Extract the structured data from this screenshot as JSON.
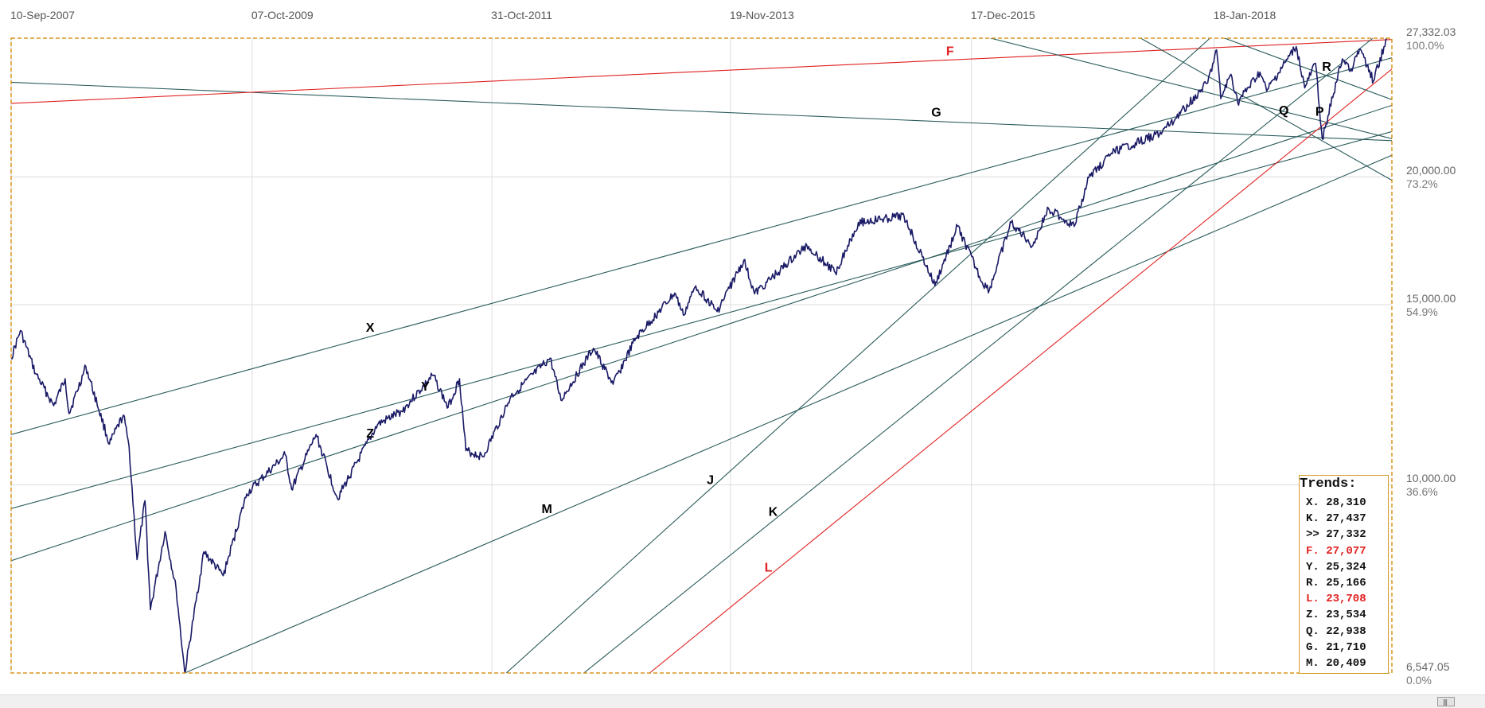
{
  "chart_data": {
    "type": "line",
    "title": "",
    "y_scale": "log",
    "ylim": [
      6547.05,
      27332.03
    ],
    "x_ticks": [
      "10-Sep-2007",
      "07-Oct-2009",
      "31-Oct-2011",
      "19-Nov-2013",
      "17-Dec-2015",
      "18-Jan-2018"
    ],
    "y_ticks": [
      {
        "value": 27332.03,
        "price_label": "27,332.03",
        "pct_label": "100.0%"
      },
      {
        "value": 20000,
        "price_label": "20,000.00",
        "pct_label": "73.2%"
      },
      {
        "value": 15000,
        "price_label": "15,000.00",
        "pct_label": "54.9%"
      },
      {
        "value": 10000,
        "price_label": "10,000.00",
        "pct_label": "36.6%"
      },
      {
        "value": 6547.05,
        "price_label": "6,547.05",
        "pct_label": "0.0%"
      }
    ],
    "grid": true,
    "series": [
      {
        "color": "#1a1a66",
        "points": [
          [
            "2007-09-10",
            13300
          ],
          [
            "2007-10-09",
            14150
          ],
          [
            "2007-11-26",
            12850
          ],
          [
            "2008-01-22",
            11950
          ],
          [
            "2008-02-27",
            12700
          ],
          [
            "2008-03-10",
            11740
          ],
          [
            "2008-05-02",
            13050
          ],
          [
            "2008-07-15",
            10960
          ],
          [
            "2008-08-28",
            11700
          ],
          [
            "2008-09-15",
            10900
          ],
          [
            "2008-10-10",
            8450
          ],
          [
            "2008-11-04",
            9650
          ],
          [
            "2008-11-21",
            7550
          ],
          [
            "2009-01-06",
            9000
          ],
          [
            "2009-02-10",
            7900
          ],
          [
            "2009-03-09",
            6547
          ],
          [
            "2009-05-08",
            8600
          ],
          [
            "2009-07-08",
            8150
          ],
          [
            "2009-09-20",
            9800
          ],
          [
            "2010-01-19",
            10700
          ],
          [
            "2010-02-08",
            9900
          ],
          [
            "2010-04-26",
            11200
          ],
          [
            "2010-07-02",
            9700
          ],
          [
            "2010-11-05",
            11450
          ],
          [
            "2011-01-20",
            11800
          ],
          [
            "2011-04-29",
            12800
          ],
          [
            "2011-06-15",
            11900
          ],
          [
            "2011-07-21",
            12700
          ],
          [
            "2011-08-10",
            10800
          ],
          [
            "2011-10-03",
            10650
          ],
          [
            "2011-12-30",
            12200
          ],
          [
            "2012-05-01",
            13300
          ],
          [
            "2012-06-04",
            12100
          ],
          [
            "2012-09-14",
            13600
          ],
          [
            "2012-11-15",
            12540
          ],
          [
            "2013-01-25",
            13900
          ],
          [
            "2013-05-28",
            15400
          ],
          [
            "2013-06-24",
            14650
          ],
          [
            "2013-08-02",
            15650
          ],
          [
            "2013-10-08",
            14770
          ],
          [
            "2013-12-31",
            16580
          ],
          [
            "2014-02-03",
            15370
          ],
          [
            "2014-07-17",
            17150
          ],
          [
            "2014-10-15",
            16120
          ],
          [
            "2014-12-26",
            18050
          ],
          [
            "2015-05-19",
            18310
          ],
          [
            "2015-08-24",
            15660
          ],
          [
            "2015-11-03",
            17900
          ],
          [
            "2016-01-20",
            15770
          ],
          [
            "2016-02-11",
            15500
          ],
          [
            "2016-04-20",
            18050
          ],
          [
            "2016-06-27",
            17140
          ],
          [
            "2016-08-15",
            18640
          ],
          [
            "2016-11-04",
            17890
          ],
          [
            "2016-12-20",
            19970
          ],
          [
            "2017-03-01",
            21100
          ],
          [
            "2017-08-08",
            22120
          ],
          [
            "2017-12-29",
            24720
          ],
          [
            "2018-01-26",
            26617
          ],
          [
            "2018-02-08",
            23860
          ],
          [
            "2018-03-12",
            25200
          ],
          [
            "2018-04-02",
            23640
          ],
          [
            "2018-06-11",
            25320
          ],
          [
            "2018-07-02",
            24270
          ],
          [
            "2018-10-03",
            26828
          ],
          [
            "2018-10-30",
            24440
          ],
          [
            "2018-12-03",
            25830
          ],
          [
            "2018-12-24",
            21790
          ],
          [
            "2019-02-25",
            26090
          ],
          [
            "2019-03-25",
            25520
          ],
          [
            "2019-04-23",
            26656
          ],
          [
            "2019-06-03",
            24815
          ],
          [
            "2019-07-15",
            27332
          ]
        ]
      }
    ],
    "trendlines": [
      {
        "label": "X",
        "color": "#2a5a5a",
        "label_color": "#000000",
        "x1": "2007-09-10",
        "y1": 11200,
        "x2": "2019-07-31",
        "y2": 26150
      },
      {
        "label": "Y",
        "color": "#2a5a5a",
        "label_color": "#000000",
        "x1": "2007-09-10",
        "y1": 9480,
        "x2": "2019-07-31",
        "y2": 22150
      },
      {
        "label": "Z",
        "color": "#2a5a5a",
        "label_color": "#000000",
        "x1": "2007-09-10",
        "y1": 8430,
        "x2": "2019-07-31",
        "y2": 23500
      },
      {
        "label": "M",
        "color": "#2a5a5a",
        "label_color": "#000000",
        "x1": "2009-03-09",
        "y1": 6547,
        "x2": "2019-07-31",
        "y2": 21000
      },
      {
        "label": "G",
        "color": "#2a5a5a",
        "label_color": "#000000",
        "x1": "2007-09-10",
        "y1": 24750,
        "x2": "2019-07-31",
        "y2": 21700
      },
      {
        "label": "F",
        "color": "#e02020",
        "label_color": "#e02020",
        "x1": "2007-09-10",
        "y1": 23600,
        "x2": "2019-07-31",
        "y2": 27250
      },
      {
        "label": "J",
        "color": "#2a5a5a",
        "label_color": "#000000",
        "x1": "2011-12-15",
        "y1": 6547,
        "x2": "2018-01-05",
        "y2": 27332
      },
      {
        "label": "K",
        "color": "#2a5a5a",
        "label_color": "#000000",
        "x1": "2012-08-15",
        "y1": 6547,
        "x2": "2019-06-01",
        "y2": 27332
      },
      {
        "label": "L",
        "color": "#e02020",
        "label_color": "#e02020",
        "x1": "2013-03-10",
        "y1": 6547,
        "x2": "2019-07-31",
        "y2": 25500
      },
      {
        "label": "P",
        "color": "#2a5a5a",
        "label_color": "#000000",
        "x1": "2016-02-15",
        "y1": 27332,
        "x2": "2019-07-31",
        "y2": 21800
      },
      {
        "label": "Q",
        "color": "#2a5a5a",
        "label_color": "#000000",
        "x1": "2017-06-01",
        "y1": 27332,
        "x2": "2019-07-31",
        "y2": 19850
      },
      {
        "label": "R",
        "color": "#2a5a5a",
        "label_color": "#000000",
        "x1": "2018-02-20",
        "y1": 27332,
        "x2": "2019-07-31",
        "y2": 23800
      }
    ],
    "trends_panel": {
      "title": "Trends:",
      "rows": [
        {
          "key": "X.",
          "value": "28,310",
          "color": "#111111"
        },
        {
          "key": "K.",
          "value": "27,437",
          "color": "#111111"
        },
        {
          "key": ">>",
          "value": "27,332",
          "color": "#111111"
        },
        {
          "key": "F.",
          "value": "27,077",
          "color": "#e02020"
        },
        {
          "key": "Y.",
          "value": "25,324",
          "color": "#111111"
        },
        {
          "key": "R.",
          "value": "25,166",
          "color": "#111111"
        },
        {
          "key": "L.",
          "value": "23,708",
          "color": "#e02020"
        },
        {
          "key": "Z.",
          "value": "23,534",
          "color": "#111111"
        },
        {
          "key": "Q.",
          "value": "22,938",
          "color": "#111111"
        },
        {
          "key": "G.",
          "value": "21,710",
          "color": "#111111"
        },
        {
          "key": "M.",
          "value": "20,409",
          "color": "#111111"
        }
      ]
    }
  }
}
